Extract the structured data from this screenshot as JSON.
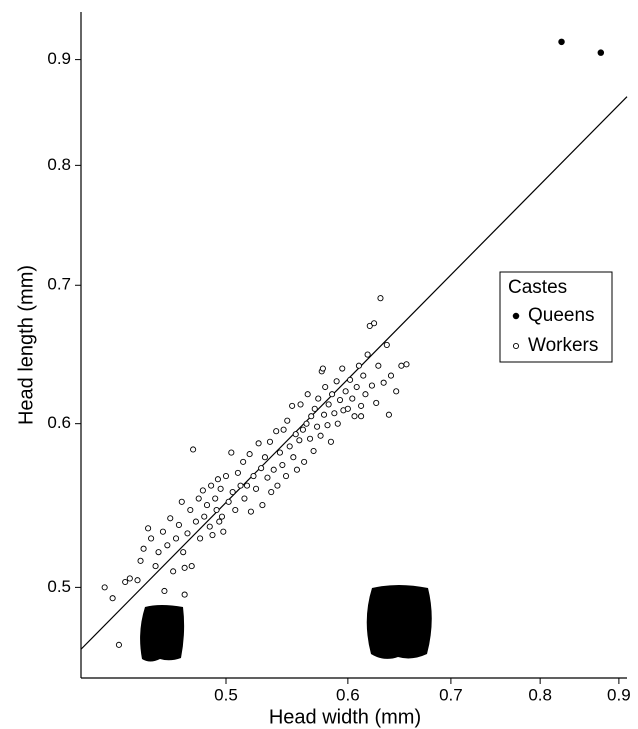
{
  "chart_data": {
    "type": "scatter",
    "xlabel": "Head width (mm)",
    "ylabel": "Head length (mm)",
    "xscale": "log",
    "yscale": "log",
    "xlim": [
      0.4025,
      0.911
    ],
    "ylim": [
      0.452,
      0.949
    ],
    "xticks": [
      0.5,
      0.6,
      0.7,
      0.8,
      0.9
    ],
    "yticks": [
      0.5,
      0.6,
      0.7,
      0.8,
      0.9
    ],
    "grid": false,
    "legend_title": "Castes",
    "legend_loc": "right",
    "fit_line": {
      "color": "#000000",
      "x": [
        0.4025,
        0.911
      ],
      "values": [
        0.4667,
        0.8636
      ]
    },
    "series": [
      {
        "name": "Queens",
        "color": "#000000",
        "marker": "filled",
        "x": [
          0.826,
          0.876
        ],
        "values": [
          0.918,
          0.907
        ]
      },
      {
        "name": "Workers",
        "color": "#000000",
        "marker": "open",
        "x": [
          0.417,
          0.422,
          0.426,
          0.43,
          0.433,
          0.438,
          0.44,
          0.442,
          0.445,
          0.447,
          0.45,
          0.452,
          0.455,
          0.456,
          0.458,
          0.46,
          0.462,
          0.464,
          0.466,
          0.468,
          0.469,
          0.47,
          0.472,
          0.474,
          0.475,
          0.476,
          0.478,
          0.48,
          0.481,
          0.483,
          0.484,
          0.486,
          0.488,
          0.489,
          0.49,
          0.492,
          0.493,
          0.494,
          0.495,
          0.496,
          0.497,
          0.498,
          0.5,
          0.502,
          0.504,
          0.505,
          0.507,
          0.509,
          0.511,
          0.513,
          0.514,
          0.516,
          0.518,
          0.519,
          0.521,
          0.523,
          0.525,
          0.527,
          0.528,
          0.53,
          0.532,
          0.534,
          0.535,
          0.537,
          0.539,
          0.54,
          0.542,
          0.544,
          0.545,
          0.547,
          0.548,
          0.55,
          0.552,
          0.553,
          0.555,
          0.556,
          0.558,
          0.559,
          0.561,
          0.562,
          0.564,
          0.565,
          0.567,
          0.568,
          0.57,
          0.571,
          0.573,
          0.574,
          0.576,
          0.577,
          0.579,
          0.58,
          0.582,
          0.583,
          0.585,
          0.586,
          0.588,
          0.59,
          0.591,
          0.593,
          0.595,
          0.596,
          0.598,
          0.6,
          0.602,
          0.604,
          0.606,
          0.608,
          0.61,
          0.612,
          0.614,
          0.616,
          0.618,
          0.62,
          0.622,
          0.624,
          0.626,
          0.628,
          0.63,
          0.633,
          0.636,
          0.638,
          0.64,
          0.645,
          0.65,
          0.655,
          0.612,
          0.578,
          0.47
        ],
        "values": [
          0.5,
          0.494,
          0.469,
          0.503,
          0.505,
          0.504,
          0.515,
          0.522,
          0.534,
          0.528,
          0.512,
          0.52,
          0.532,
          0.498,
          0.524,
          0.54,
          0.509,
          0.528,
          0.536,
          0.55,
          0.52,
          0.511,
          0.531,
          0.545,
          0.512,
          0.583,
          0.538,
          0.552,
          0.528,
          0.557,
          0.541,
          0.548,
          0.535,
          0.56,
          0.53,
          0.552,
          0.545,
          0.564,
          0.538,
          0.558,
          0.541,
          0.532,
          0.566,
          0.55,
          0.581,
          0.556,
          0.545,
          0.568,
          0.56,
          0.575,
          0.552,
          0.56,
          0.58,
          0.544,
          0.566,
          0.558,
          0.587,
          0.571,
          0.548,
          0.578,
          0.565,
          0.588,
          0.556,
          0.57,
          0.595,
          0.56,
          0.581,
          0.573,
          0.596,
          0.566,
          0.602,
          0.585,
          0.612,
          0.578,
          0.593,
          0.57,
          0.589,
          0.613,
          0.596,
          0.575,
          0.6,
          0.62,
          0.59,
          0.605,
          0.582,
          0.61,
          0.598,
          0.617,
          0.592,
          0.636,
          0.606,
          0.625,
          0.599,
          0.613,
          0.588,
          0.62,
          0.607,
          0.629,
          0.6,
          0.616,
          0.638,
          0.609,
          0.622,
          0.61,
          0.63,
          0.617,
          0.605,
          0.625,
          0.64,
          0.612,
          0.633,
          0.62,
          0.648,
          0.669,
          0.626,
          0.671,
          0.614,
          0.64,
          0.69,
          0.628,
          0.655,
          0.606,
          0.633,
          0.622,
          0.64,
          0.641,
          0.605,
          0.638,
          0.496
        ]
      }
    ]
  }
}
